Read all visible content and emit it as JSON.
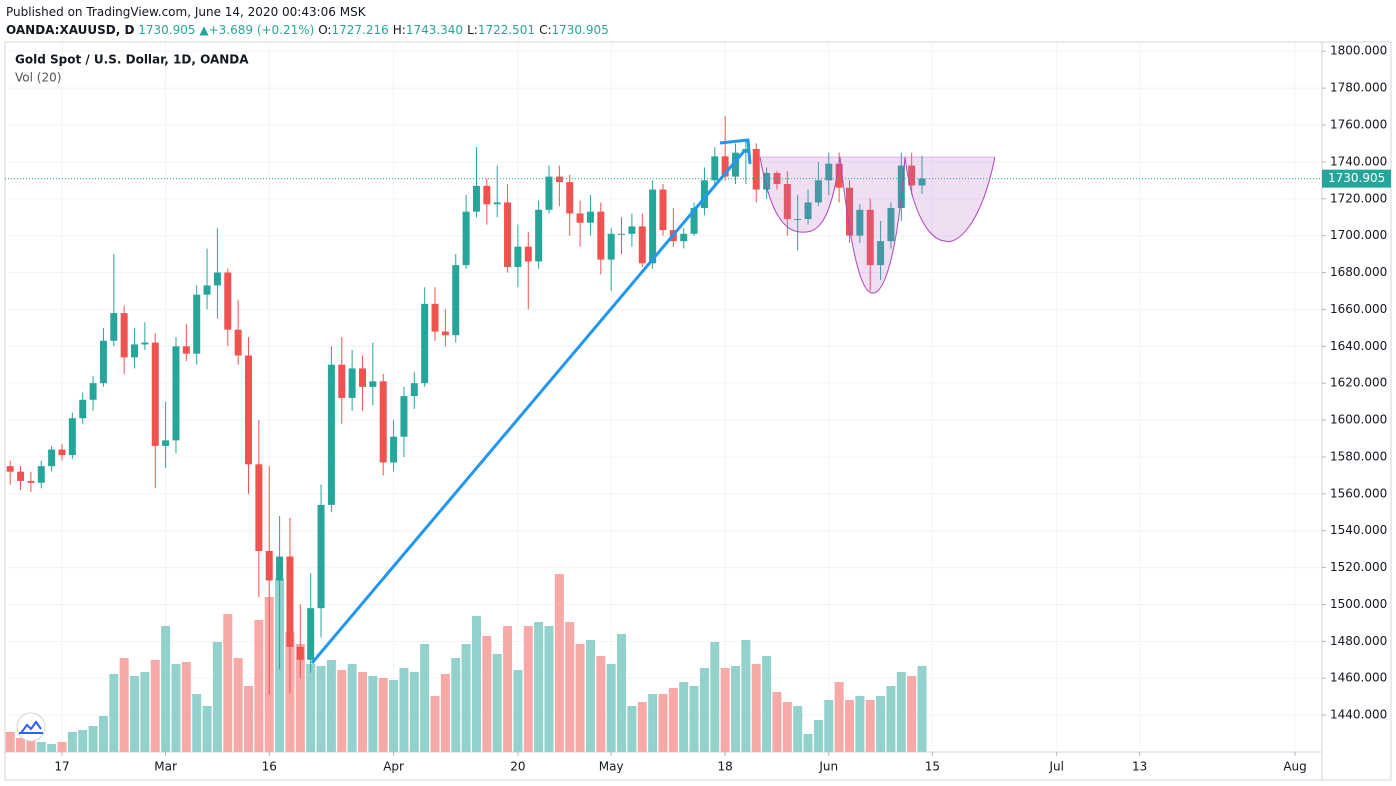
{
  "header": {
    "published": "Published on TradingView.com, June 14, 2020 00:43:06 MSK",
    "symbol": "OANDA:XAUUSD, D",
    "last": "1730.905",
    "change": "+3.689 (+0.21%)",
    "ohlc": [
      {
        "label": "O:",
        "value": "1727.216"
      },
      {
        "label": "H:",
        "value": "1743.340"
      },
      {
        "label": "L:",
        "value": "1722.501"
      },
      {
        "label": "C:",
        "value": "1730.905"
      }
    ]
  },
  "chart_data": {
    "type": "candlestick",
    "title": "Gold Spot / U.S. Dollar, 1D, OANDA",
    "volume_label": "Vol (20)",
    "up_color": "#26a69a",
    "down_color": "#ef5350",
    "volume_up_color": "#93d2cc",
    "volume_down_color": "#f7a9a7",
    "grid": true,
    "xlim": [
      -0.5,
      126.6
    ],
    "xticks": [
      {
        "value": 5,
        "label": "17"
      },
      {
        "value": 15,
        "label": "Mar"
      },
      {
        "value": 25,
        "label": "16"
      },
      {
        "value": 37,
        "label": "Apr"
      },
      {
        "value": 49,
        "label": "20"
      },
      {
        "value": 58,
        "label": "May"
      },
      {
        "value": 69,
        "label": "18"
      },
      {
        "value": 79,
        "label": "Jun"
      },
      {
        "value": 89,
        "label": "15"
      },
      {
        "value": 101,
        "label": "Jul"
      },
      {
        "value": 109,
        "label": "13"
      },
      {
        "value": 124,
        "label": "Aug"
      }
    ],
    "ylim": [
      1420,
      1805
    ],
    "yticks": [
      {
        "value": 1440,
        "label": "1440.000"
      },
      {
        "value": 1460,
        "label": "1460.000"
      },
      {
        "value": 1480,
        "label": "1480.000"
      },
      {
        "value": 1500,
        "label": "1500.000"
      },
      {
        "value": 1520,
        "label": "1520.000"
      },
      {
        "value": 1540,
        "label": "1540.000"
      },
      {
        "value": 1560,
        "label": "1560.000"
      },
      {
        "value": 1580,
        "label": "1580.000"
      },
      {
        "value": 1600,
        "label": "1600.000"
      },
      {
        "value": 1620,
        "label": "1620.000"
      },
      {
        "value": 1640,
        "label": "1640.000"
      },
      {
        "value": 1660,
        "label": "1660.000"
      },
      {
        "value": 1680,
        "label": "1680.000"
      },
      {
        "value": 1700,
        "label": "1700.000"
      },
      {
        "value": 1720,
        "label": "1720.000"
      },
      {
        "value": 1740,
        "label": "1740.000"
      },
      {
        "value": 1760,
        "label": "1760.000"
      },
      {
        "value": 1780,
        "label": "1780.000"
      },
      {
        "value": 1800,
        "label": "1800.000"
      }
    ],
    "volume_lim": [
      0,
      400
    ],
    "open": [
      1575,
      1572,
      1567,
      1566,
      1575,
      1584,
      1581,
      1601,
      1611,
      1620,
      1643,
      1658,
      1634,
      1641,
      1642,
      1586,
      1589,
      1640,
      1636,
      1668,
      1673,
      1680,
      1649,
      1635,
      1576,
      1529,
      1513,
      1526,
      1477,
      1470,
      1498,
      1554,
      1630,
      1612,
      1628,
      1618,
      1621,
      1577,
      1591,
      1613,
      1620,
      1663,
      1648,
      1646,
      1684,
      1713,
      1727,
      1717,
      1718,
      1683,
      1694,
      1686,
      1714,
      1732,
      1729,
      1712,
      1707,
      1713,
      1687,
      1701,
      1701,
      1705,
      1685,
      1725,
      1703,
      1697,
      1701,
      1715,
      1730,
      1743,
      1732,
      1745,
      1747,
      1725,
      1734,
      1728,
      1709,
      1709,
      1718,
      1730,
      1739,
      1726,
      1700,
      1714,
      1684,
      1697,
      1715,
      1738,
      1727.216
    ],
    "high": [
      1578,
      1575,
      1572,
      1578,
      1586,
      1587,
      1604,
      1615,
      1624,
      1650,
      1690,
      1662,
      1650,
      1653,
      1647,
      1610,
      1645,
      1652,
      1673,
      1693,
      1704,
      1682,
      1665,
      1645,
      1600,
      1575,
      1548,
      1547,
      1500,
      1517,
      1565,
      1640,
      1645,
      1638,
      1635,
      1642,
      1625,
      1600,
      1618,
      1626,
      1672,
      1672,
      1660,
      1690,
      1722,
      1748,
      1731,
      1738,
      1728,
      1706,
      1702,
      1719,
      1738,
      1738,
      1733,
      1719,
      1722,
      1718,
      1704,
      1710,
      1712,
      1712,
      1730,
      1728,
      1715,
      1704,
      1718,
      1737,
      1748,
      1765,
      1750,
      1752,
      1750,
      1737,
      1735,
      1735,
      1722,
      1725,
      1740,
      1745,
      1745,
      1730,
      1717,
      1720,
      1708,
      1718,
      1745,
      1745,
      1743.34
    ],
    "low": [
      1565,
      1562,
      1561,
      1563,
      1572,
      1578,
      1579,
      1598,
      1605,
      1618,
      1640,
      1625,
      1628,
      1638,
      1563,
      1574,
      1582,
      1632,
      1630,
      1660,
      1655,
      1640,
      1630,
      1560,
      1504,
      1451,
      1465,
      1452,
      1460,
      1463,
      1482,
      1550,
      1598,
      1605,
      1605,
      1608,
      1570,
      1572,
      1580,
      1606,
      1618,
      1643,
      1640,
      1642,
      1682,
      1710,
      1706,
      1710,
      1680,
      1672,
      1660,
      1682,
      1712,
      1716,
      1700,
      1694,
      1700,
      1679,
      1670,
      1690,
      1694,
      1683,
      1682,
      1700,
      1694,
      1693,
      1700,
      1711,
      1726,
      1730,
      1728,
      1728,
      1718,
      1720,
      1725,
      1700,
      1692,
      1706,
      1716,
      1722,
      1718,
      1696,
      1696,
      1670,
      1676,
      1693,
      1708,
      1722,
      1722.501
    ],
    "close": [
      1572,
      1567,
      1566,
      1575,
      1584,
      1581,
      1601,
      1611,
      1620,
      1643,
      1658,
      1634,
      1641,
      1642,
      1586,
      1589,
      1640,
      1636,
      1668,
      1673,
      1680,
      1649,
      1635,
      1576,
      1529,
      1513,
      1526,
      1477,
      1470,
      1498,
      1554,
      1630,
      1612,
      1628,
      1618,
      1621,
      1577,
      1591,
      1613,
      1620,
      1663,
      1648,
      1646,
      1684,
      1713,
      1727,
      1717,
      1718,
      1683,
      1694,
      1686,
      1714,
      1732,
      1729,
      1712,
      1707,
      1713,
      1687,
      1701,
      1701,
      1705,
      1685,
      1725,
      1703,
      1697,
      1701,
      1715,
      1730,
      1743,
      1732,
      1745,
      1747,
      1725,
      1734,
      1728,
      1709,
      1709,
      1718,
      1730,
      1739,
      1726,
      1700,
      1714,
      1684,
      1697,
      1715,
      1738,
      1727.216,
      1730.905
    ],
    "volume": [
      20,
      14,
      12,
      10,
      8,
      10,
      20,
      22,
      26,
      36,
      78,
      94,
      76,
      80,
      92,
      126,
      88,
      90,
      58,
      46,
      110,
      138,
      94,
      66,
      132,
      155,
      174,
      120,
      108,
      88,
      86,
      92,
      82,
      88,
      80,
      76,
      74,
      72,
      84,
      80,
      108,
      56,
      78,
      94,
      108,
      136,
      116,
      98,
      126,
      82,
      126,
      130,
      126,
      178,
      130,
      108,
      112,
      96,
      88,
      118,
      46,
      50,
      58,
      58,
      64,
      70,
      66,
      84,
      110,
      84,
      86,
      112,
      88,
      96,
      60,
      50,
      46,
      18,
      32,
      52,
      70,
      52,
      56,
      52,
      56,
      66,
      80,
      76,
      86
    ]
  }
}
